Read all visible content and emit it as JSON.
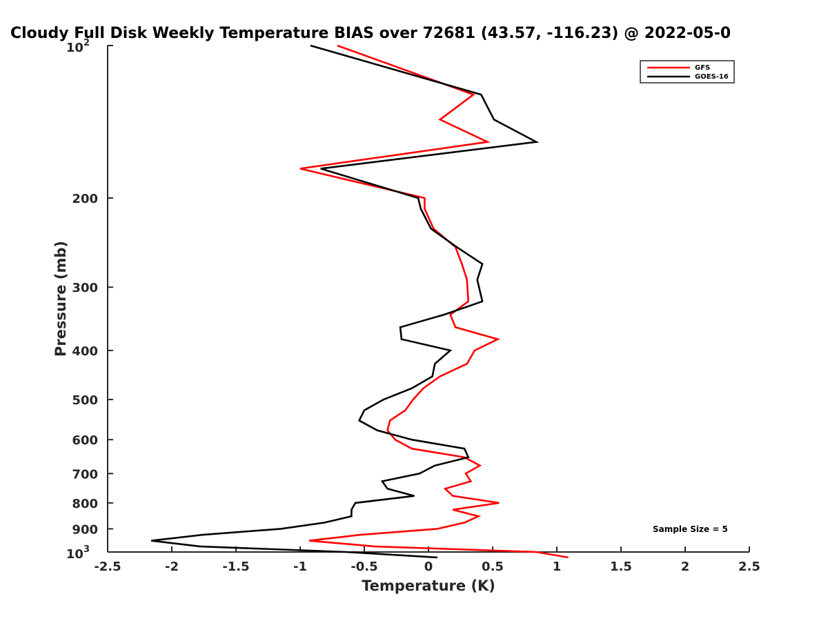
{
  "chart_data": {
    "type": "line",
    "title": "Cloudy Full Disk Weekly Temperature BIAS over 72681 (43.57, -116.23) @ 2022-05-0",
    "xlabel": "Temperature (K)",
    "ylabel": "Pressure (mb)",
    "xlim": [
      -2.5,
      2.5
    ],
    "ylim": [
      100,
      1000
    ],
    "y_scale": "log",
    "y_reversed": true,
    "x_ticks": [
      "-2.5",
      "-2",
      "-1.5",
      "-1",
      "-0.5",
      "0",
      "0.5",
      "1",
      "1.5",
      "2",
      "2.5"
    ],
    "y_ticks": [
      {
        "value": 100,
        "base": "10",
        "exp": "2"
      },
      {
        "value": 200,
        "label": "200"
      },
      {
        "value": 300,
        "label": "300"
      },
      {
        "value": 400,
        "label": "400"
      },
      {
        "value": 500,
        "label": "500"
      },
      {
        "value": 600,
        "label": "600"
      },
      {
        "value": 700,
        "label": "700"
      },
      {
        "value": 800,
        "label": "800"
      },
      {
        "value": 900,
        "label": "900"
      },
      {
        "value": 1000,
        "base": "10",
        "exp": "3"
      }
    ],
    "legend_position": "top-right",
    "grid": false,
    "annotation": "Sample Size = 5",
    "series": [
      {
        "name": "GFS",
        "color": "#ff0000",
        "points": [
          [
            -0.71,
            100
          ],
          [
            0.35,
            125
          ],
          [
            0.09,
            140
          ],
          [
            0.46,
            155
          ],
          [
            -1.0,
            175
          ],
          [
            -0.03,
            200
          ],
          [
            -0.03,
            210
          ],
          [
            0.04,
            230
          ],
          [
            0.21,
            250
          ],
          [
            0.26,
            270
          ],
          [
            0.3,
            290
          ],
          [
            0.31,
            320
          ],
          [
            0.17,
            340
          ],
          [
            0.21,
            360
          ],
          [
            0.54,
            380
          ],
          [
            0.36,
            400
          ],
          [
            0.3,
            425
          ],
          [
            0.09,
            450
          ],
          [
            -0.04,
            475
          ],
          [
            -0.12,
            500
          ],
          [
            -0.18,
            525
          ],
          [
            -0.3,
            550
          ],
          [
            -0.32,
            575
          ],
          [
            -0.26,
            600
          ],
          [
            -0.13,
            625
          ],
          [
            0.28,
            650
          ],
          [
            0.4,
            675
          ],
          [
            0.29,
            700
          ],
          [
            0.33,
            725
          ],
          [
            0.13,
            750
          ],
          [
            0.19,
            775
          ],
          [
            0.55,
            800
          ],
          [
            0.19,
            825
          ],
          [
            0.39,
            850
          ],
          [
            0.28,
            875
          ],
          [
            0.07,
            900
          ],
          [
            -0.53,
            925
          ],
          [
            -0.93,
            950
          ],
          [
            -0.42,
            975
          ],
          [
            0.84,
            1000
          ],
          [
            1.09,
            1025
          ]
        ]
      },
      {
        "name": "GOES-16",
        "color": "#000000",
        "points": [
          [
            -0.92,
            100
          ],
          [
            0.41,
            125
          ],
          [
            0.51,
            140
          ],
          [
            0.84,
            155
          ],
          [
            -0.84,
            175
          ],
          [
            -0.08,
            200
          ],
          [
            -0.06,
            210
          ],
          [
            0.02,
            230
          ],
          [
            0.22,
            250
          ],
          [
            0.42,
            270
          ],
          [
            0.38,
            290
          ],
          [
            0.42,
            320
          ],
          [
            0.12,
            340
          ],
          [
            -0.22,
            360
          ],
          [
            -0.21,
            380
          ],
          [
            0.17,
            400
          ],
          [
            0.05,
            425
          ],
          [
            0.03,
            450
          ],
          [
            -0.13,
            475
          ],
          [
            -0.35,
            500
          ],
          [
            -0.5,
            525
          ],
          [
            -0.54,
            550
          ],
          [
            -0.4,
            575
          ],
          [
            -0.13,
            600
          ],
          [
            0.28,
            625
          ],
          [
            0.31,
            650
          ],
          [
            0.05,
            675
          ],
          [
            -0.07,
            700
          ],
          [
            -0.36,
            725
          ],
          [
            -0.32,
            750
          ],
          [
            -0.11,
            775
          ],
          [
            -0.57,
            800
          ],
          [
            -0.6,
            825
          ],
          [
            -0.6,
            850
          ],
          [
            -0.81,
            875
          ],
          [
            -1.15,
            900
          ],
          [
            -1.76,
            925
          ],
          [
            -2.16,
            950
          ],
          [
            -1.78,
            975
          ],
          [
            -0.64,
            1000
          ],
          [
            0.07,
            1025
          ]
        ]
      }
    ]
  }
}
